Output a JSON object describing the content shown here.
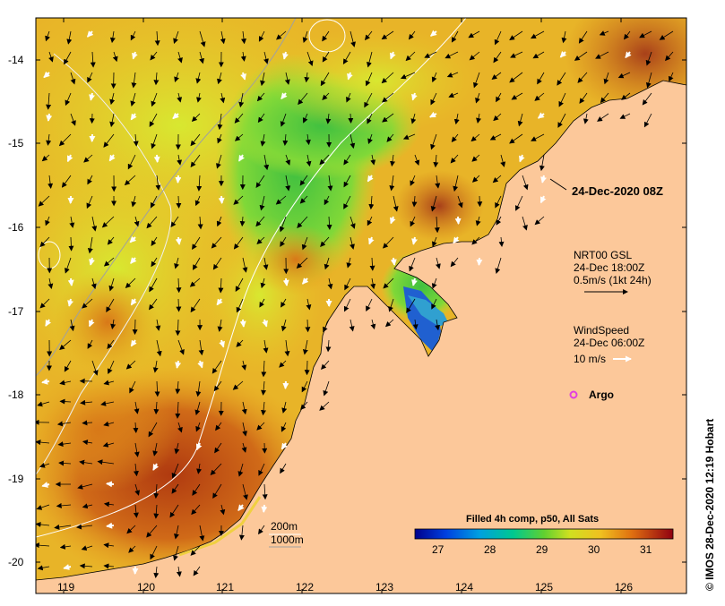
{
  "map": {
    "y_axis_labels": [
      "-14",
      "-15",
      "-16",
      "-17",
      "-18",
      "-19",
      "-20"
    ],
    "x_axis_labels": [
      "119",
      "120",
      "121",
      "122",
      "123",
      "124",
      "125",
      "126"
    ],
    "timestamp_label": "24-Dec-2020 08Z",
    "currents": {
      "line1": "NRT00 GSL",
      "line2": "24-Dec 18:00Z",
      "line3": "0.5m/s (1kt 24h)"
    },
    "wind": {
      "line1": "WindSpeed",
      "line2": "24-Dec 06:00Z",
      "line3": "10 m/s"
    },
    "argo_label": "Argo",
    "isobaths": [
      "200m",
      "1000m"
    ],
    "colorbar": {
      "title": "Filled 4h comp, p50, All Sats",
      "ticks": [
        "27",
        "28",
        "29",
        "30",
        "31"
      ]
    },
    "credit": "© IMOS 28-Dec-2020 12:19 Hobart",
    "colors": {
      "land": "#fcc89a",
      "sea_warm": "#e8b020",
      "sea_hot": "#c05010",
      "sea_mid": "#c8e030",
      "sea_cool": "#58c840",
      "argo": "#e040e0"
    }
  }
}
